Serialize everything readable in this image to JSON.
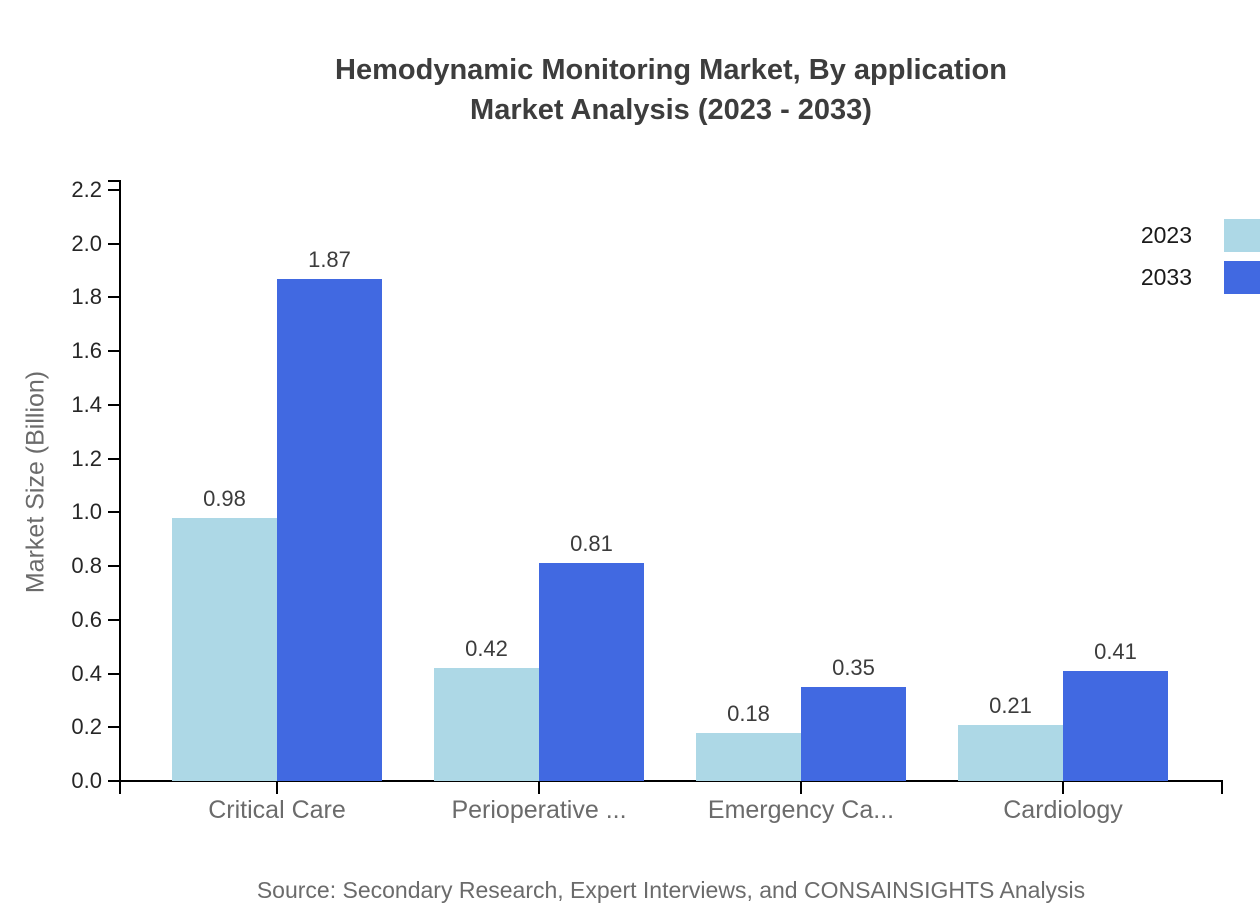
{
  "title": {
    "line1": "Hemodynamic Monitoring Market, By application",
    "line2": "Market Analysis (2023 - 2033)"
  },
  "source": "Source: Secondary Research, Expert Interviews, and CONSAINSIGHTS Analysis",
  "legend": {
    "items": [
      {
        "label": "2023",
        "color": "#ADD8E6"
      },
      {
        "label": "2033",
        "color": "#4169E1"
      }
    ]
  },
  "chart_data": {
    "type": "bar",
    "title": "Hemodynamic Monitoring Market, By application Market Analysis (2023 - 2033)",
    "categories": [
      "Critical Care",
      "Perioperative ...",
      "Emergency Ca...",
      "Cardiology"
    ],
    "series": [
      {
        "name": "2023",
        "color": "#ADD8E6",
        "values": [
          0.98,
          0.42,
          0.18,
          0.21
        ]
      },
      {
        "name": "2033",
        "color": "#4169E1",
        "values": [
          1.87,
          0.81,
          0.35,
          0.41
        ]
      }
    ],
    "xlabel": "",
    "ylabel": "Market Size (Billion)",
    "ylim": [
      0,
      2.2
    ],
    "ytick_step": 0.2,
    "ytick_labels": [
      "0.0",
      "0.2",
      "0.4",
      "0.6",
      "0.8",
      "1.0",
      "1.2",
      "1.4",
      "1.6",
      "1.8",
      "2.0",
      "2.2"
    ],
    "grid": false,
    "legend_position": "top-right",
    "bar_value_labels": [
      "0.98",
      "1.87",
      "0.42",
      "0.81",
      "0.18",
      "0.35",
      "0.21",
      "0.41"
    ]
  },
  "colors": {
    "series_2023": "#ADD8E6",
    "series_2033": "#4169E1",
    "axis": "#000000",
    "title_text": "#3d3d3d",
    "value_label_text": "#3c3c3c",
    "muted_text": "#6b6b6b",
    "legend_text": "#1a1a1a",
    "background": "#ffffff"
  }
}
